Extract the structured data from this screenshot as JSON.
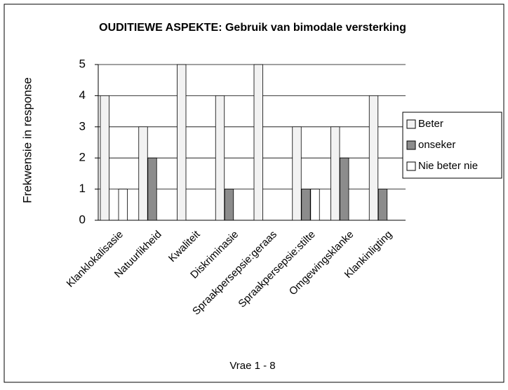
{
  "chart_data": {
    "type": "bar",
    "title": "OUDITIEWE ASPEKTE: Gebruik van bimodale versterking",
    "x_label": "Vrae 1 - 8",
    "y_label": "Frekwensie in response",
    "categories": [
      "Klanklokalisasie",
      "Natuurlikheid",
      "Kwaliteit",
      "Diskriminasie",
      "Spraakpersepsie:geraas",
      "Spraakpersepsie:stilte",
      "Omgewingsklanke",
      "Klankinligting"
    ],
    "series": [
      {
        "name": "Beter",
        "color": "#f2f2f2",
        "values": [
          4,
          3,
          5,
          4,
          5,
          3,
          3,
          4
        ]
      },
      {
        "name": "onseker",
        "color": "#8c8c8c",
        "values": [
          0,
          2,
          0,
          1,
          0,
          1,
          2,
          1
        ]
      },
      {
        "name": "Nie beter nie",
        "color": "#ffffff",
        "values": [
          1,
          0,
          0,
          0,
          0,
          1,
          0,
          0
        ]
      }
    ],
    "ylim": [
      0,
      5
    ],
    "yticks": [
      0,
      1,
      2,
      3,
      4,
      5
    ],
    "grid": true,
    "legend": "right"
  }
}
